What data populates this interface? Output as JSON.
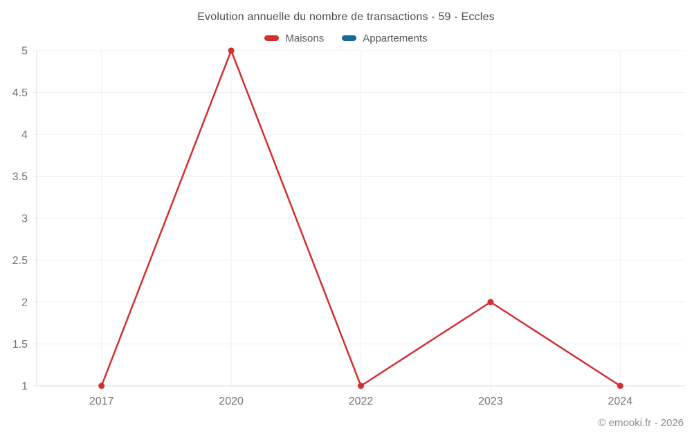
{
  "title": "Evolution annuelle du nombre de transactions - 59 - Eccles",
  "legend": [
    {
      "label": "Maisons",
      "color": "#d32f2f"
    },
    {
      "label": "Appartements",
      "color": "#17699c"
    }
  ],
  "footer": {
    "copyright": "© emooki.fr - 2026"
  },
  "chart_data": {
    "type": "line",
    "title": "Evolution annuelle du nombre de transactions - 59 - Eccles",
    "categories": [
      "2017",
      "2020",
      "2022",
      "2023",
      "2024"
    ],
    "series": [
      {
        "name": "Maisons",
        "color": "#d32f2f",
        "values": [
          1,
          5,
          1,
          2,
          1
        ]
      },
      {
        "name": "Appartements",
        "color": "#17699c",
        "values": []
      }
    ],
    "xlabel": "",
    "ylabel": "",
    "ylim": [
      1,
      5
    ],
    "ytick_step": 0.5,
    "yticks": [
      1,
      1.5,
      2,
      2.5,
      3,
      3.5,
      4,
      4.5,
      5
    ],
    "grid": true,
    "legend_position": "top",
    "grid_color": "#efefef",
    "axis_color": "#dcdcdc",
    "tick_label_color": "#757575",
    "marker_radius": 4.5,
    "line_width": 2.5
  }
}
